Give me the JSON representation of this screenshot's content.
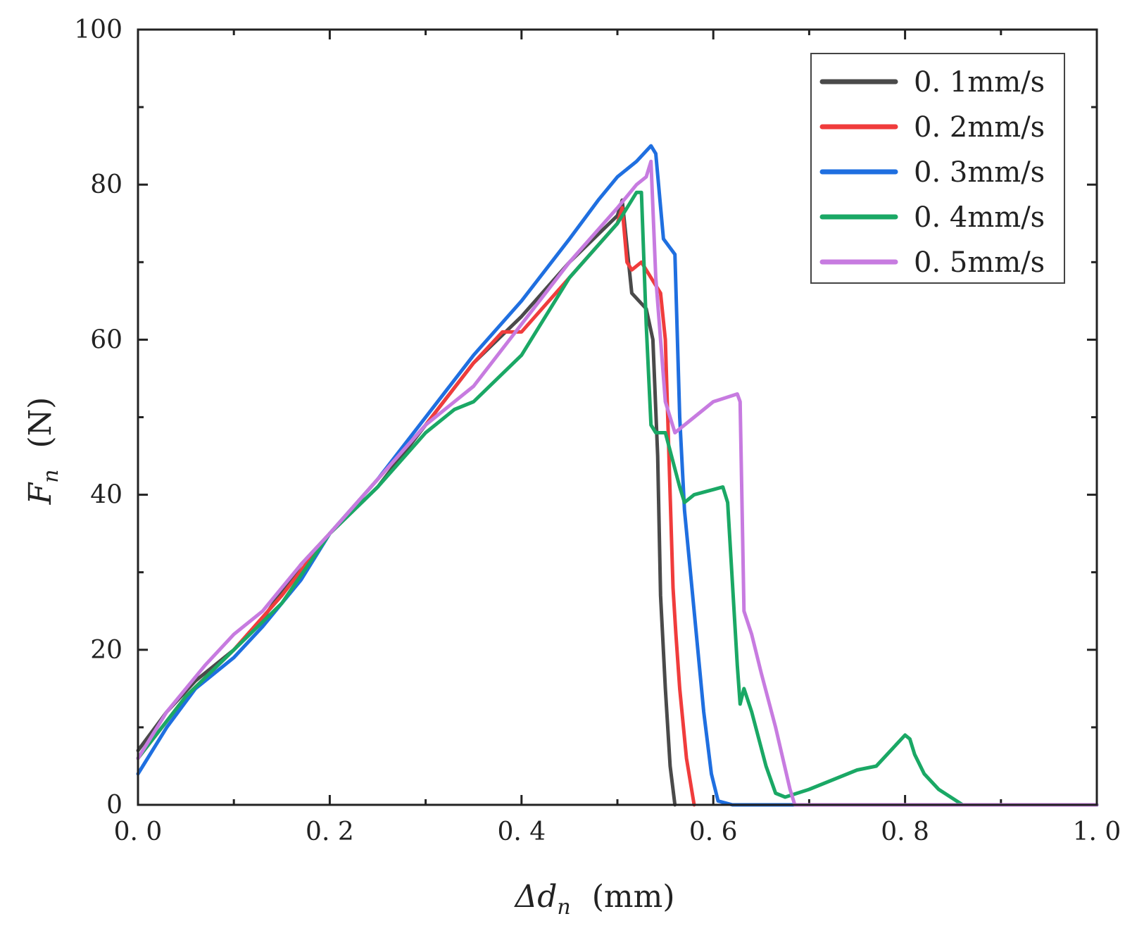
{
  "chart_data": {
    "type": "line",
    "title": "",
    "xlabel": {
      "main": "Δd",
      "sub": "n",
      "unit": "(mm)"
    },
    "ylabel": {
      "main": "F",
      "sub": "n",
      "unit": "(N)"
    },
    "xlim": [
      0.0,
      1.0
    ],
    "ylim": [
      0,
      100
    ],
    "xticks": [
      0.0,
      0.2,
      0.4,
      0.6,
      0.8,
      1.0
    ],
    "xtick_labels": [
      "0. 0",
      "0. 2",
      "0. 4",
      "0. 6",
      "0. 8",
      "1. 0"
    ],
    "yticks": [
      0,
      20,
      40,
      60,
      80,
      100
    ],
    "ytick_labels": [
      "0",
      "20",
      "40",
      "60",
      "80",
      "100"
    ],
    "grid": false,
    "legend_position": "top-right",
    "series": [
      {
        "name": "0. 1mm/s",
        "color": "#4a4a4a",
        "x": [
          0.0,
          0.03,
          0.06,
          0.1,
          0.13,
          0.17,
          0.2,
          0.25,
          0.3,
          0.35,
          0.4,
          0.45,
          0.5,
          0.505,
          0.515,
          0.53,
          0.537,
          0.542,
          0.545,
          0.55,
          0.555,
          0.56
        ],
        "y": [
          7,
          12,
          16,
          20,
          24,
          31,
          35,
          41,
          49,
          57,
          63,
          70,
          76,
          78,
          66,
          64,
          60,
          45,
          27,
          15,
          5,
          0
        ]
      },
      {
        "name": "0. 2mm/s",
        "color": "#f03c3c",
        "x": [
          0.0,
          0.05,
          0.1,
          0.15,
          0.2,
          0.25,
          0.3,
          0.35,
          0.38,
          0.4,
          0.45,
          0.5,
          0.505,
          0.51,
          0.515,
          0.525,
          0.535,
          0.545,
          0.55,
          0.555,
          0.558,
          0.561,
          0.565,
          0.572,
          0.58
        ],
        "y": [
          6,
          14,
          20,
          27,
          35,
          42,
          49,
          57,
          61,
          61,
          68,
          75,
          77,
          70,
          69,
          70,
          68,
          66,
          60,
          40,
          28,
          22,
          15,
          6,
          0
        ]
      },
      {
        "name": "0. 3mm/s",
        "color": "#1f6fe0",
        "x": [
          0.0,
          0.03,
          0.06,
          0.1,
          0.13,
          0.17,
          0.2,
          0.25,
          0.3,
          0.35,
          0.4,
          0.45,
          0.48,
          0.5,
          0.52,
          0.535,
          0.54,
          0.548,
          0.56,
          0.565,
          0.57,
          0.58,
          0.59,
          0.598,
          0.605,
          0.62,
          0.7,
          0.8,
          0.9,
          1.0
        ],
        "y": [
          4,
          10,
          15,
          19,
          23,
          29,
          35,
          42,
          50,
          58,
          65,
          73,
          78,
          81,
          83,
          85,
          84,
          73,
          71,
          50,
          38,
          25,
          12,
          4,
          0.5,
          0,
          0,
          0,
          0,
          0
        ]
      },
      {
        "name": "0. 4mm/s",
        "color": "#1aa865",
        "x": [
          0.0,
          0.05,
          0.1,
          0.15,
          0.2,
          0.25,
          0.3,
          0.33,
          0.35,
          0.4,
          0.45,
          0.5,
          0.52,
          0.525,
          0.53,
          0.535,
          0.54,
          0.55,
          0.565,
          0.57,
          0.58,
          0.61,
          0.615,
          0.625,
          0.628,
          0.632,
          0.64,
          0.655,
          0.665,
          0.675,
          0.7,
          0.75,
          0.77,
          0.8,
          0.805,
          0.81,
          0.82,
          0.835,
          0.86,
          0.9,
          1.0
        ],
        "y": [
          6,
          14,
          20,
          26,
          35,
          41,
          48,
          51,
          52,
          58,
          68,
          75,
          79,
          79,
          62,
          49,
          48,
          48,
          41,
          39,
          40,
          41,
          39,
          18,
          13,
          15,
          12,
          5,
          1.5,
          1,
          2,
          4.5,
          5,
          9,
          8.5,
          6.5,
          4,
          2,
          0,
          0,
          0
        ]
      },
      {
        "name": "0. 5mm/s",
        "color": "#c77be0",
        "x": [
          0.0,
          0.03,
          0.07,
          0.1,
          0.13,
          0.17,
          0.2,
          0.25,
          0.3,
          0.35,
          0.4,
          0.45,
          0.5,
          0.52,
          0.53,
          0.535,
          0.54,
          0.55,
          0.56,
          0.58,
          0.6,
          0.625,
          0.628,
          0.632,
          0.64,
          0.65,
          0.665,
          0.68,
          0.685,
          0.7,
          0.8,
          0.9,
          1.0
        ],
        "y": [
          6,
          12,
          18,
          22,
          25,
          31,
          35,
          42,
          49,
          54,
          62,
          70,
          77,
          80,
          81,
          83,
          68,
          52,
          48,
          50,
          52,
          53,
          52,
          25,
          22,
          17,
          10,
          2,
          0,
          0,
          0,
          0,
          0
        ]
      }
    ]
  }
}
